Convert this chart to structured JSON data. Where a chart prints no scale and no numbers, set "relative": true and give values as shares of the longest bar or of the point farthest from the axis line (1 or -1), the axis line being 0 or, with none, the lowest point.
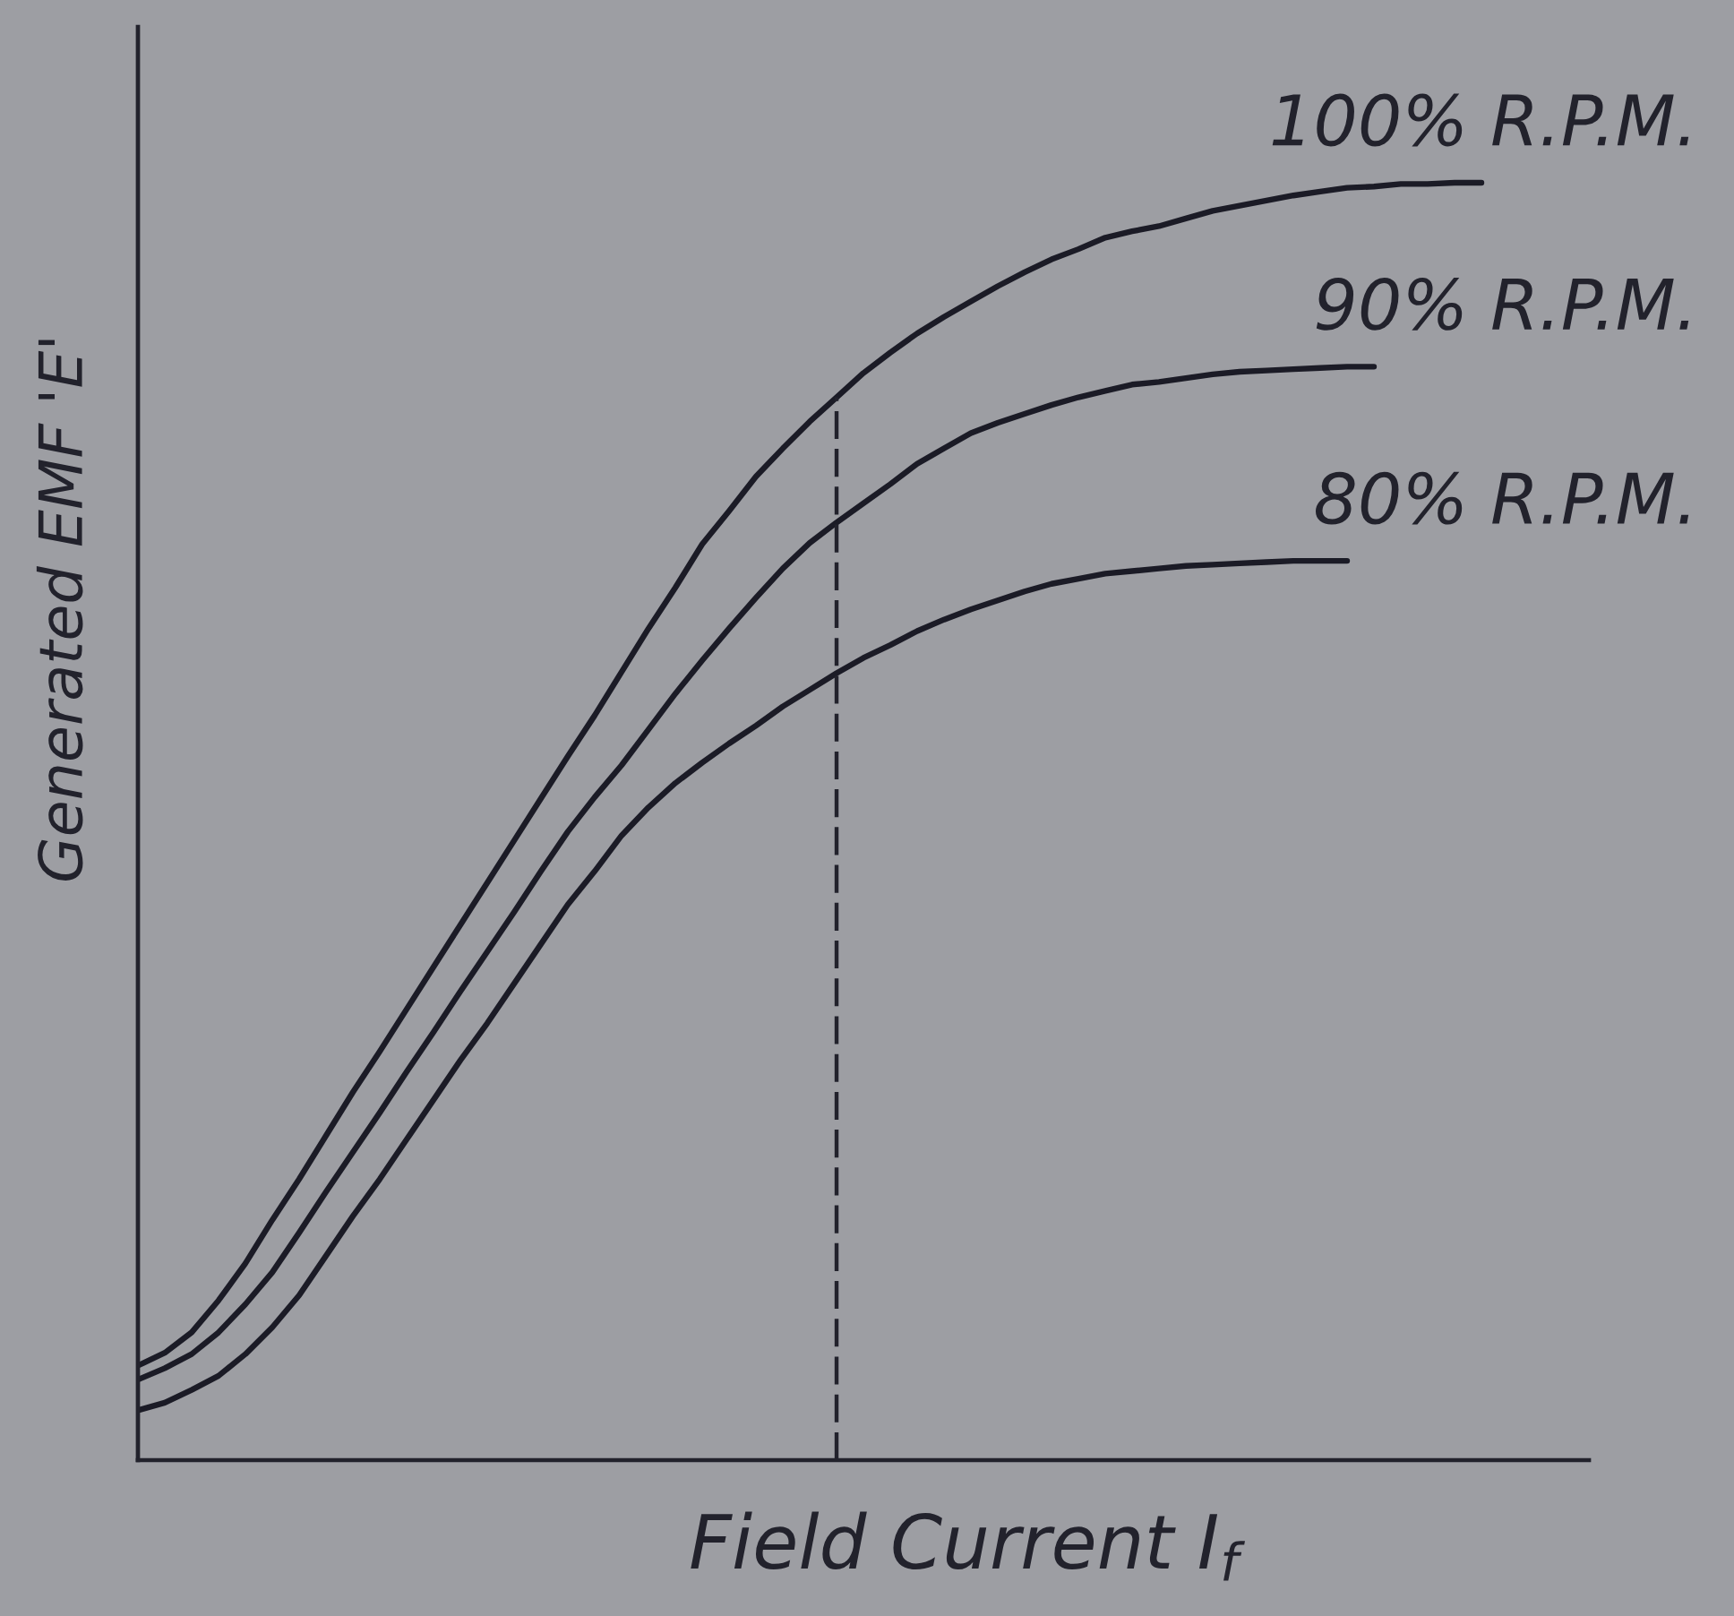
{
  "chart_data": {
    "type": "line",
    "relative": true,
    "xlabel": "Field Current I$_{f}$",
    "ylabel": "Generated EMF 'E'",
    "categories": [
      null,
      null,
      null,
      null,
      null,
      null,
      null,
      null,
      null,
      null,
      null,
      null,
      null,
      null,
      null,
      null,
      null,
      null,
      null,
      null,
      null,
      null,
      null,
      null,
      null,
      null,
      null,
      null,
      null,
      null,
      null,
      null,
      null,
      null,
      null,
      null,
      null,
      null,
      null,
      null,
      null,
      null,
      null,
      null,
      null,
      null,
      null,
      null,
      null,
      null,
      null,
      null,
      null,
      null,
      null
    ],
    "series": [
      {
        "name": "100% R.P.M.",
        "color": "#1b1b26",
        "values": [
          0.074,
          0.084,
          0.1,
          0.125,
          0.154,
          0.188,
          0.22,
          0.254,
          0.288,
          0.32,
          0.353,
          0.386,
          0.419,
          0.452,
          0.485,
          0.518,
          0.551,
          0.583,
          0.617,
          0.651,
          0.683,
          0.717,
          0.743,
          0.77,
          0.792,
          0.813,
          0.832,
          0.851,
          0.867,
          0.882,
          0.895,
          0.907,
          0.919,
          0.93,
          0.94,
          0.948,
          0.957,
          0.962,
          0.966,
          0.972,
          0.978,
          0.982,
          0.986,
          0.99,
          0.993,
          0.996,
          0.997,
          0.999,
          0.999,
          1,
          1,
          null,
          null,
          null,
          null
        ]
      },
      {
        "name": "90% R.P.M.",
        "color": "#1b1b26",
        "values": [
          0.063,
          0.072,
          0.083,
          0.1,
          0.122,
          0.147,
          0.178,
          0.21,
          0.241,
          0.272,
          0.304,
          0.335,
          0.367,
          0.398,
          0.429,
          0.461,
          0.492,
          0.519,
          0.544,
          0.572,
          0.6,
          0.626,
          0.651,
          0.675,
          0.698,
          0.718,
          0.734,
          0.749,
          0.764,
          0.78,
          0.792,
          0.804,
          0.812,
          0.819,
          0.826,
          0.832,
          0.837,
          0.842,
          0.844,
          0.847,
          0.85,
          0.852,
          0.853,
          0.854,
          0.855,
          0.856,
          0.856,
          null,
          null,
          null,
          null,
          null,
          null,
          null,
          null
        ]
      },
      {
        "name": "80% R.P.M.",
        "color": "#1b1b26",
        "values": [
          0.039,
          0.045,
          0.055,
          0.066,
          0.083,
          0.104,
          0.129,
          0.16,
          0.191,
          0.22,
          0.251,
          0.282,
          0.313,
          0.342,
          0.373,
          0.404,
          0.435,
          0.461,
          0.489,
          0.511,
          0.53,
          0.546,
          0.561,
          0.575,
          0.59,
          0.603,
          0.616,
          0.628,
          0.638,
          0.649,
          0.658,
          0.666,
          0.673,
          0.68,
          0.686,
          0.69,
          0.694,
          0.696,
          0.698,
          0.7,
          0.701,
          0.702,
          0.703,
          0.704,
          0.704,
          0.704,
          null,
          null,
          null,
          null,
          null,
          null,
          null,
          null,
          null
        ]
      }
    ]
  }
}
